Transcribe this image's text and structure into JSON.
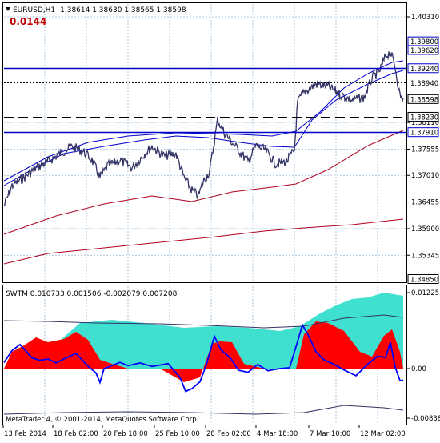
{
  "main_chart": {
    "symbol_header": "EURUSD,H1",
    "ohlc": "1.38614 1.38630 1.38565 1.38598",
    "spread_value": "0.0144",
    "y_axis_ticks": [
      "1.40310",
      "1.38110",
      "1.37555",
      "1.37010",
      "1.36455",
      "1.35900",
      "1.35345"
    ],
    "price_tags": [
      {
        "label": "1.39800",
        "level": 1.398,
        "line": "longdash",
        "color": "#000000",
        "tag_border": "#0000cc"
      },
      {
        "label": "1.39620",
        "level": 1.3962,
        "line": "dot",
        "color": "#000000",
        "tag_border": "#0000cc"
      },
      {
        "label": "1.39240",
        "level": 1.3924,
        "line": "solid",
        "color": "#0000cc",
        "tag_border": "#0000cc"
      },
      {
        "label": "1.38940",
        "level": 1.3894,
        "line": "dot",
        "color": "#000000",
        "tag_border": "#ffffff"
      },
      {
        "label": "1.38598",
        "level": 1.38598,
        "line": "none",
        "color": "#000000",
        "tag_border": "#000000"
      },
      {
        "label": "1.38230",
        "level": 1.3823,
        "line": "longdash",
        "color": "#000000",
        "tag_border": "#000000"
      },
      {
        "label": "1.37910",
        "level": 1.3791,
        "line": "solid",
        "color": "#0000cc",
        "tag_border": "#0000cc"
      },
      {
        "label": "1.34850",
        "level": 1.3485,
        "line": "none",
        "color": "#000000",
        "tag_border": "#000000"
      }
    ]
  },
  "indicator": {
    "header": "SWTM 0.010733 0.001506 -0.002079 0.007208",
    "y_axis_ticks": [
      "0.012255",
      "0.00",
      "-0.008381"
    ],
    "copyright": "MetaTrader 4, © 2001-2014, MetaQuotes Software Corp."
  },
  "x_axis_labels": [
    "13 Feb 2014",
    "18 Feb 02:00",
    "20 Feb 18:00",
    "25 Feb 10:00",
    "28 Feb 02:00",
    "4 Mar 18:00",
    "7 Mar 10:00",
    "12 Mar 02:00"
  ],
  "colors": {
    "price_line": "#333366",
    "ma_blue": "#0000cc",
    "ma_red": "#b00020",
    "grid": "#8fb8d8",
    "hist_red": "#ff0000",
    "hist_cyan": "#40e0d0",
    "swtm_line": "#0000ff"
  }
}
